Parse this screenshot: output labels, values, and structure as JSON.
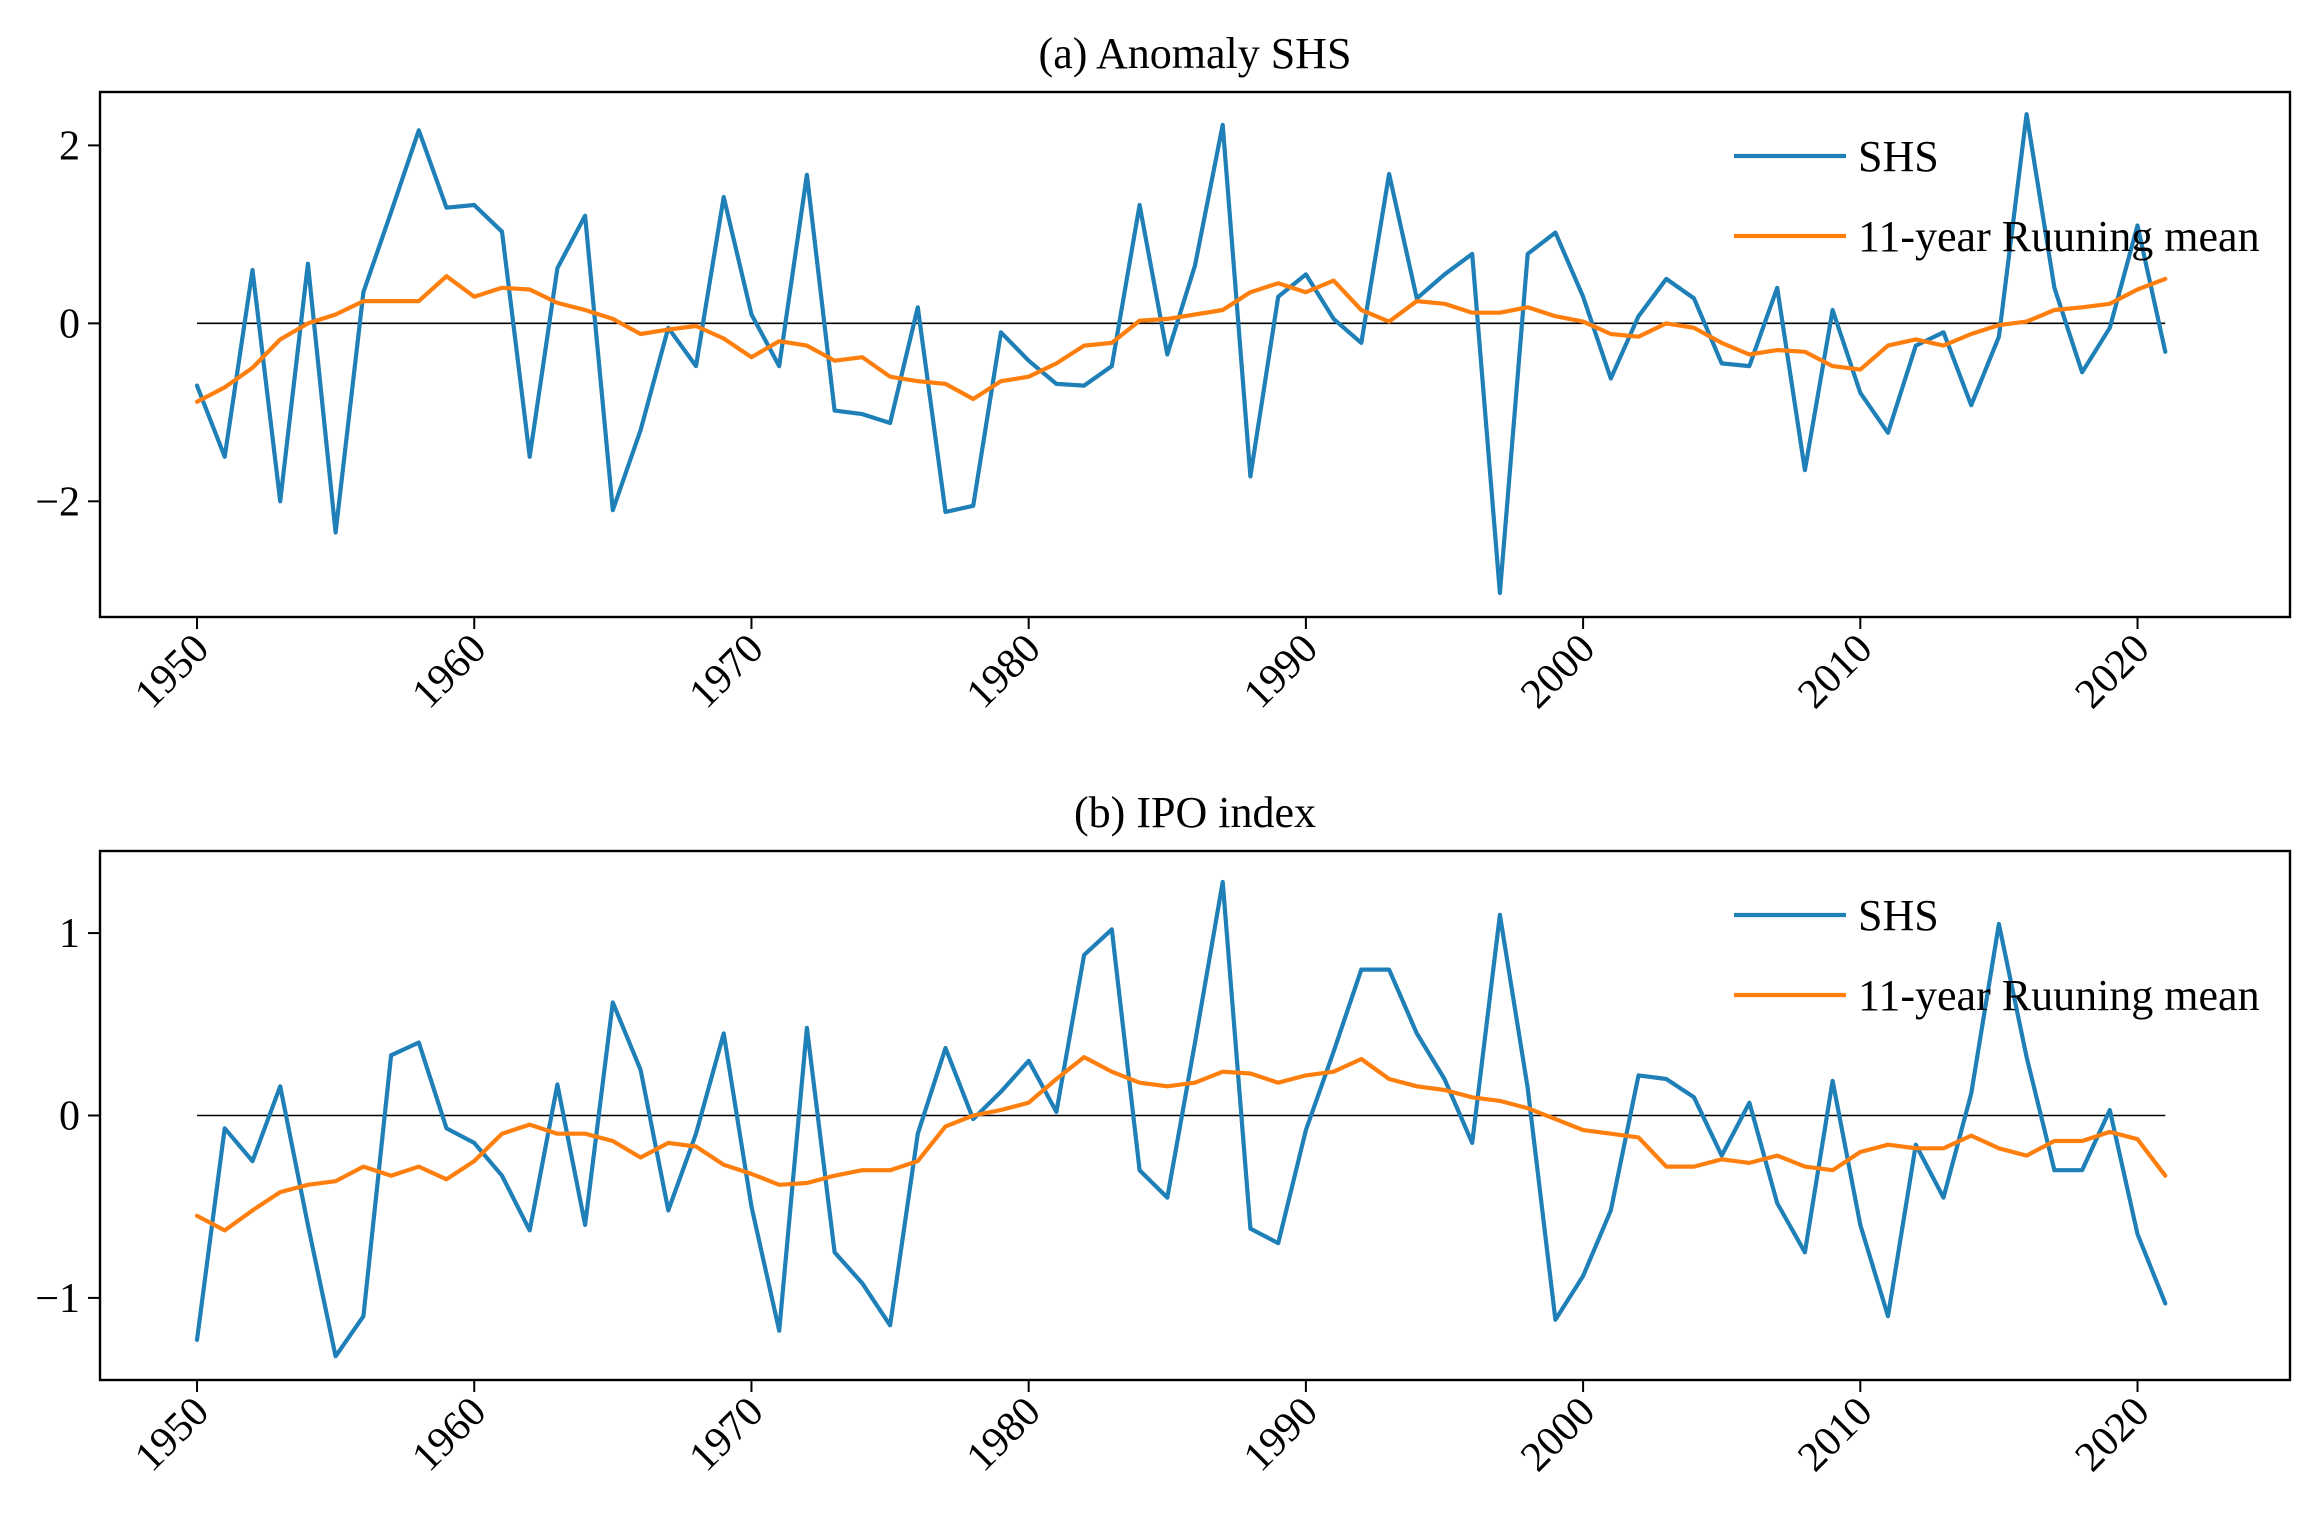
{
  "chart_data": [
    {
      "type": "line",
      "title": "(a) Anomaly SHS",
      "xlabel": "",
      "ylabel": "",
      "xlim": [
        1946.5,
        2025.5
      ],
      "ylim": [
        -3.3,
        2.6
      ],
      "xticks": [
        1950,
        1960,
        1970,
        1980,
        1990,
        2000,
        2010,
        2020
      ],
      "yticks": [
        -2,
        0,
        2
      ],
      "ytick_labels": [
        "−2",
        "0",
        "2"
      ],
      "zero_line": true,
      "grid": false,
      "legend": "top-right",
      "x": [
        1950,
        1951,
        1952,
        1953,
        1954,
        1955,
        1956,
        1957,
        1958,
        1959,
        1960,
        1961,
        1962,
        1963,
        1964,
        1965,
        1966,
        1967,
        1968,
        1969,
        1970,
        1971,
        1972,
        1973,
        1974,
        1975,
        1976,
        1977,
        1978,
        1979,
        1980,
        1981,
        1982,
        1983,
        1984,
        1985,
        1986,
        1987,
        1988,
        1989,
        1990,
        1991,
        1992,
        1993,
        1994,
        1995,
        1996,
        1997,
        1998,
        1999,
        2000,
        2001,
        2002,
        2003,
        2004,
        2005,
        2006,
        2007,
        2008,
        2009,
        2010,
        2011,
        2012,
        2013,
        2014,
        2015,
        2016,
        2017,
        2018,
        2019,
        2020,
        2021
      ],
      "series": [
        {
          "name": "SHS",
          "color": "#1f80b8",
          "values": [
            -0.7,
            -1.5,
            0.6,
            -2.0,
            0.67,
            -2.35,
            0.35,
            1.25,
            2.17,
            1.3,
            1.33,
            1.03,
            -1.5,
            0.62,
            1.21,
            -2.1,
            -1.2,
            -0.05,
            -0.48,
            1.42,
            0.1,
            -0.48,
            1.67,
            -0.98,
            -1.02,
            -1.12,
            0.18,
            -2.12,
            -2.05,
            -0.1,
            -0.42,
            -0.68,
            -0.7,
            -0.48,
            1.33,
            -0.35,
            0.65,
            2.23,
            -1.72,
            0.3,
            0.55,
            0.05,
            -0.22,
            1.68,
            0.28,
            0.55,
            0.78,
            -3.03,
            0.78,
            1.02,
            0.3,
            -0.62,
            0.08,
            0.5,
            0.28,
            -0.45,
            -0.48,
            0.4,
            -1.65,
            0.15,
            -0.78,
            -1.23,
            -0.25,
            -0.1,
            -0.92,
            -0.15,
            2.35,
            0.4,
            -0.55,
            -0.05,
            1.1,
            -0.32
          ]
        },
        {
          "name": "11-year Ruuning mean",
          "color": "#ff7f0e",
          "values": [
            -0.88,
            -0.72,
            -0.5,
            -0.18,
            0.0,
            0.1,
            0.25,
            0.25,
            0.25,
            0.53,
            0.3,
            0.4,
            0.38,
            0.23,
            0.15,
            0.05,
            -0.12,
            -0.07,
            -0.03,
            -0.17,
            -0.38,
            -0.2,
            -0.25,
            -0.42,
            -0.38,
            -0.6,
            -0.65,
            -0.68,
            -0.85,
            -0.65,
            -0.6,
            -0.45,
            -0.25,
            -0.22,
            0.03,
            0.05,
            0.1,
            0.15,
            0.35,
            0.45,
            0.35,
            0.48,
            0.15,
            0.02,
            0.25,
            0.22,
            0.12,
            0.12,
            0.18,
            0.08,
            0.02,
            -0.12,
            -0.15,
            0.0,
            -0.05,
            -0.22,
            -0.35,
            -0.3,
            -0.32,
            -0.48,
            -0.52,
            -0.25,
            -0.18,
            -0.25,
            -0.12,
            -0.02,
            0.02,
            0.15,
            0.18,
            0.22,
            0.38,
            0.5
          ]
        }
      ]
    },
    {
      "type": "line",
      "title": "(b) IPO index",
      "xlabel": "",
      "ylabel": "",
      "xlim": [
        1946.5,
        2025.5
      ],
      "ylim": [
        -1.45,
        1.45
      ],
      "xticks": [
        1950,
        1960,
        1970,
        1980,
        1990,
        2000,
        2010,
        2020
      ],
      "yticks": [
        -1,
        0,
        1
      ],
      "ytick_labels": [
        "−1",
        "0",
        "1"
      ],
      "zero_line": true,
      "grid": false,
      "legend": "top-right",
      "x": [
        1950,
        1951,
        1952,
        1953,
        1954,
        1955,
        1956,
        1957,
        1958,
        1959,
        1960,
        1961,
        1962,
        1963,
        1964,
        1965,
        1966,
        1967,
        1968,
        1969,
        1970,
        1971,
        1972,
        1973,
        1974,
        1975,
        1976,
        1977,
        1978,
        1979,
        1980,
        1981,
        1982,
        1983,
        1984,
        1985,
        1986,
        1987,
        1988,
        1989,
        1990,
        1991,
        1992,
        1993,
        1994,
        1995,
        1996,
        1997,
        1998,
        1999,
        2000,
        2001,
        2002,
        2003,
        2004,
        2005,
        2006,
        2007,
        2008,
        2009,
        2010,
        2011,
        2012,
        2013,
        2014,
        2015,
        2016,
        2017,
        2018,
        2019,
        2020,
        2021
      ],
      "series": [
        {
          "name": "SHS",
          "color": "#1f80b8",
          "values": [
            -1.23,
            -0.07,
            -0.25,
            0.16,
            -0.6,
            -1.32,
            -1.1,
            0.33,
            0.4,
            -0.07,
            -0.15,
            -0.33,
            -0.63,
            0.17,
            -0.6,
            0.62,
            0.25,
            -0.52,
            -0.1,
            0.45,
            -0.5,
            -1.18,
            0.48,
            -0.75,
            -0.92,
            -1.15,
            -0.1,
            0.37,
            -0.02,
            0.13,
            0.3,
            0.02,
            0.88,
            1.02,
            -0.3,
            -0.45,
            0.4,
            1.28,
            -0.62,
            -0.7,
            -0.08,
            0.35,
            0.8,
            0.8,
            0.45,
            0.2,
            -0.15,
            1.1,
            0.15,
            -1.12,
            -0.88,
            -0.52,
            0.22,
            0.2,
            0.1,
            -0.22,
            0.07,
            -0.48,
            -0.75,
            0.19,
            -0.6,
            -1.1,
            -0.16,
            -0.45,
            0.12,
            1.05,
            0.32,
            -0.3,
            -0.3,
            0.03,
            -0.65,
            -1.03
          ]
        },
        {
          "name": "11-year Ruuning mean",
          "color": "#ff7f0e",
          "values": [
            -0.55,
            -0.63,
            -0.52,
            -0.42,
            -0.38,
            -0.36,
            -0.28,
            -0.33,
            -0.28,
            -0.35,
            -0.25,
            -0.1,
            -0.05,
            -0.1,
            -0.1,
            -0.14,
            -0.23,
            -0.15,
            -0.17,
            -0.27,
            -0.32,
            -0.38,
            -0.37,
            -0.33,
            -0.3,
            -0.3,
            -0.25,
            -0.06,
            0.0,
            0.03,
            0.07,
            0.2,
            0.32,
            0.24,
            0.18,
            0.16,
            0.18,
            0.24,
            0.23,
            0.18,
            0.22,
            0.24,
            0.31,
            0.2,
            0.16,
            0.14,
            0.1,
            0.08,
            0.04,
            -0.02,
            -0.08,
            -0.1,
            -0.12,
            -0.28,
            -0.28,
            -0.24,
            -0.26,
            -0.22,
            -0.28,
            -0.3,
            -0.2,
            -0.16,
            -0.18,
            -0.18,
            -0.11,
            -0.18,
            -0.22,
            -0.14,
            -0.14,
            -0.09,
            -0.13,
            -0.33
          ]
        }
      ]
    }
  ]
}
